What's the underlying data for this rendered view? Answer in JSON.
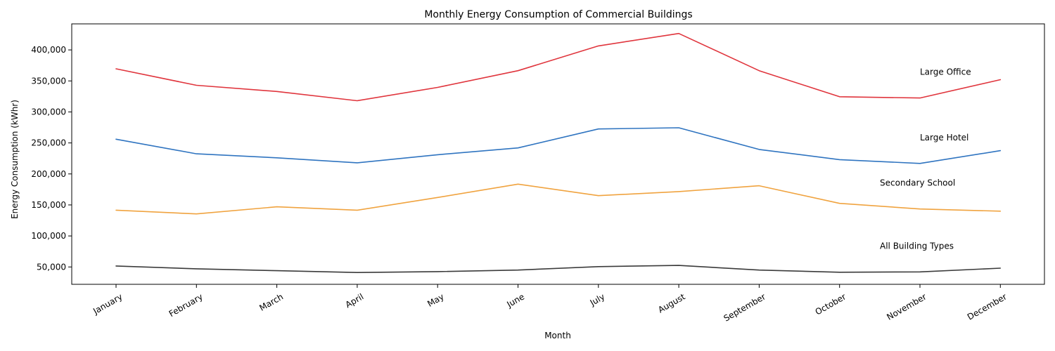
{
  "chart_data": {
    "type": "line",
    "title": "Monthly Energy Consumption of Commercial Buildings",
    "xlabel": "Month",
    "ylabel": "Energy Consumption (kWhr)",
    "categories": [
      "January",
      "February",
      "March",
      "April",
      "May",
      "June",
      "July",
      "August",
      "September",
      "October",
      "November",
      "December"
    ],
    "ylim": [
      22000,
      442000
    ],
    "yticks": [
      50000,
      100000,
      150000,
      200000,
      250000,
      300000,
      350000,
      400000
    ],
    "ytick_labels": [
      "50,000",
      "100,000",
      "150,000",
      "200,000",
      "250,000",
      "300,000",
      "350,000",
      "400,000"
    ],
    "grid": false,
    "legend": "none",
    "series": [
      {
        "name": "Large Office",
        "color": "#e0353d",
        "values": [
          369500,
          343000,
          333000,
          318000,
          339500,
          366500,
          406500,
          426500,
          366500,
          324500,
          322500,
          352000
        ]
      },
      {
        "name": "Large Hotel",
        "color": "#2f74c0",
        "values": [
          256000,
          232500,
          226000,
          218000,
          231000,
          242000,
          272500,
          274500,
          239500,
          223000,
          217000,
          237500
        ]
      },
      {
        "name": "Secondary School",
        "color": "#f0a33f",
        "values": [
          141500,
          135500,
          147000,
          141500,
          162000,
          183500,
          165000,
          171500,
          181000,
          152500,
          143500,
          140000
        ]
      },
      {
        "name": "All Building Types",
        "color": "#3a3a3a",
        "values": [
          51500,
          47000,
          44000,
          41000,
          42500,
          45000,
          50500,
          52500,
          45000,
          41500,
          42000,
          48000
        ]
      }
    ]
  }
}
